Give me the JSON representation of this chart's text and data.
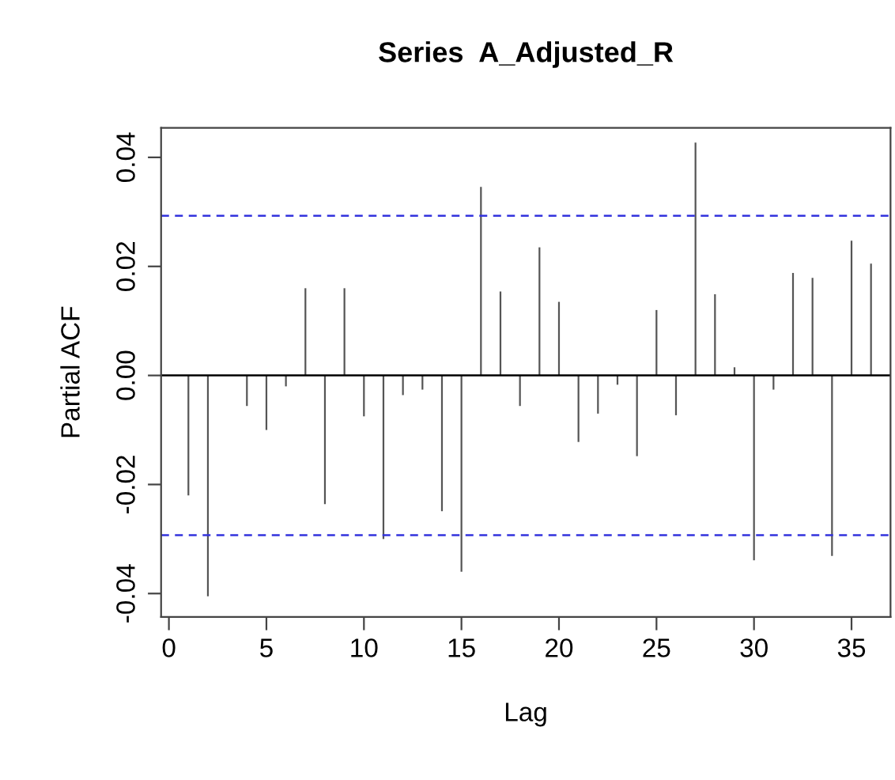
{
  "chart_data": {
    "type": "bar",
    "title": "Series  A_Adjusted_R",
    "xlabel": "Lag",
    "ylabel": "Partial ACF",
    "x": [
      1,
      2,
      3,
      4,
      5,
      6,
      7,
      8,
      9,
      10,
      11,
      12,
      13,
      14,
      15,
      16,
      17,
      18,
      19,
      20,
      21,
      22,
      23,
      24,
      25,
      26,
      27,
      28,
      29,
      30,
      31,
      32,
      33,
      34,
      35,
      36
    ],
    "series": [
      {
        "color": "#555555",
        "values": [
          -0.022,
          -0.0405,
          0.0,
          -0.0056,
          -0.01,
          -0.002,
          0.016,
          -0.0236,
          0.016,
          -0.0075,
          -0.03,
          -0.0036,
          -0.0026,
          -0.0249,
          -0.036,
          0.0346,
          0.0154,
          -0.0056,
          0.0235,
          0.0135,
          -0.0122,
          -0.007,
          -0.0017,
          -0.0148,
          0.012,
          -0.0073,
          0.0427,
          0.0149,
          0.0015,
          -0.0339,
          -0.0026,
          0.0188,
          0.0179,
          -0.0331,
          0.0247,
          0.0205
        ]
      }
    ],
    "xlim": [
      -0.4,
      37
    ],
    "xticks": [
      0,
      5,
      10,
      15,
      20,
      25,
      30,
      35
    ],
    "ylim": [
      -0.0443,
      0.0454
    ],
    "yticks": [
      {
        "value": -0.04,
        "label": "-0.04"
      },
      {
        "value": -0.02,
        "label": "-0.02"
      },
      {
        "value": 0,
        "label": "0.00"
      },
      {
        "value": 0.02,
        "label": "0.02"
      },
      {
        "value": 0.04,
        "label": "0.04"
      }
    ],
    "ref_lines": [
      {
        "axis": "y",
        "value": 0.0293,
        "color": "#3333dd",
        "line_style": "dashed"
      },
      {
        "axis": "y",
        "value": -0.0293,
        "color": "#3333dd",
        "line_style": "dashed"
      },
      {
        "axis": "y",
        "value": 0,
        "color": "#000000",
        "line_style": "solid"
      }
    ],
    "grid": false,
    "legend": false
  }
}
